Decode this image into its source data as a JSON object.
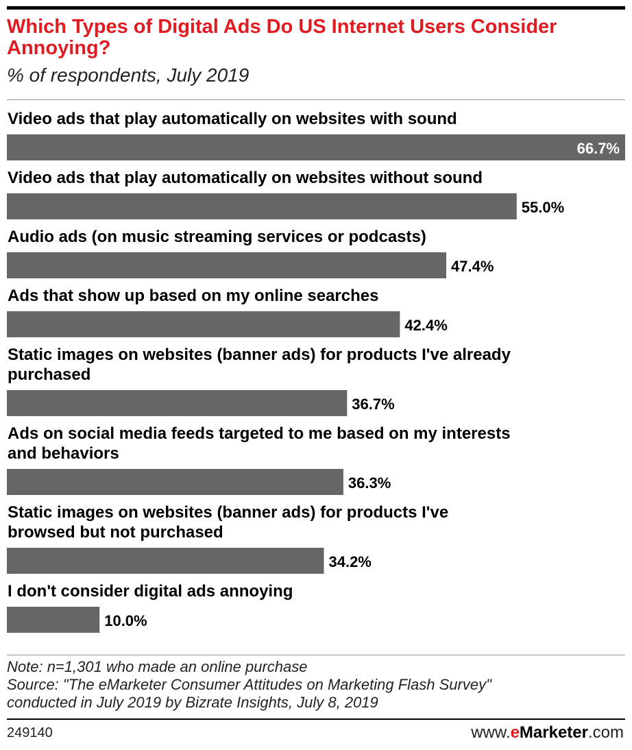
{
  "header": {
    "title": "Which Types of Digital Ads Do US Internet Users Consider Annoying?",
    "subtitle": "% of respondents, July 2019"
  },
  "chart_data": {
    "type": "bar",
    "orientation": "horizontal",
    "title": "Which Types of Digital Ads Do US Internet Users Consider Annoying?",
    "subtitle": "% of respondents, July 2019",
    "categories": [
      "Video ads that play automatically on websites with sound",
      "Video ads that play automatically on websites without sound",
      "Audio ads (on music streaming services or podcasts)",
      "Ads that show up based on my online searches",
      "Static images on websites (banner ads) for products I've already purchased",
      "Ads on social media feeds targeted to me based on my interests and behaviors",
      "Static images on websites (banner ads) for products I've browsed but not purchased",
      "I don't consider digital ads annoying"
    ],
    "label_lines": [
      [
        "Video ads that play automatically on websites with sound"
      ],
      [
        "Video ads that play automatically on websites without sound"
      ],
      [
        "Audio ads (on music streaming services or podcasts)"
      ],
      [
        "Ads that show up based on my online searches"
      ],
      [
        "Static images on websites (banner ads) for products I've already",
        "purchased"
      ],
      [
        "Ads on social media feeds targeted to me based on my interests",
        "and behaviors"
      ],
      [
        "Static images on websites (banner ads) for products I've",
        "browsed but not purchased"
      ],
      [
        "I don't consider digital ads annoying"
      ]
    ],
    "values": [
      66.7,
      55.0,
      47.4,
      42.4,
      36.7,
      36.3,
      34.2,
      10.0
    ],
    "value_labels": [
      "66.7%",
      "55.0%",
      "47.4%",
      "42.4%",
      "36.7%",
      "36.3%",
      "34.2%",
      "10.0%"
    ],
    "xlim": [
      0,
      66.7
    ],
    "bar_color": "#666666",
    "grid": false
  },
  "footer": {
    "note": "Note: n=1,301 who made an online purchase",
    "source_line1": "Source: \"The eMarketer Consumer Attitudes on Marketing Flash Survey\"",
    "source_line2": "conducted in July 2019 by Bizrate Insights, July 8, 2019",
    "chart_id": "249140",
    "brand_prefix": "www.",
    "brand_e": "e",
    "brand_main": "Marketer",
    "brand_suffix": ".com"
  },
  "colors": {
    "title": "#e11b22",
    "bar": "#666666",
    "text": "#000000"
  }
}
